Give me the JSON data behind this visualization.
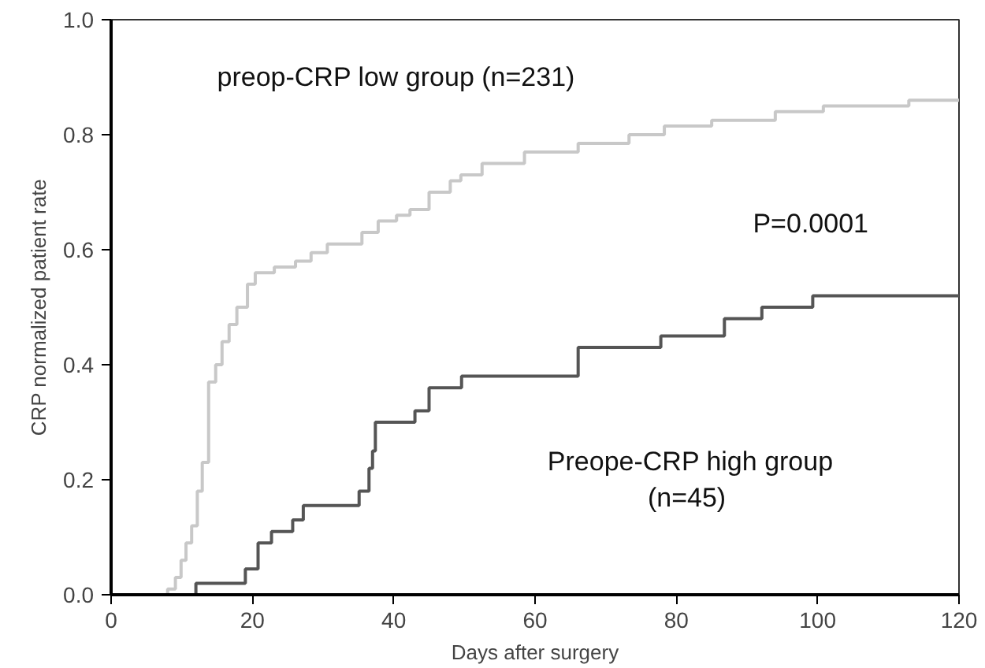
{
  "chart_data": {
    "type": "step",
    "xlabel": "Days after surgery",
    "ylabel": "CRP normalized patient rate",
    "xlim": [
      0,
      120
    ],
    "xticks": [
      0,
      20,
      40,
      60,
      80,
      100,
      120
    ],
    "ylim": [
      0,
      1
    ],
    "yticks": [
      {
        "value": 0,
        "label": "0.0"
      },
      {
        "value": 0.2,
        "label": "0.2"
      },
      {
        "value": 0.4,
        "label": "0.4"
      },
      {
        "value": 0.6,
        "label": "0.6"
      },
      {
        "value": 0.8,
        "label": "0.8"
      },
      {
        "value": 1,
        "label": "1.0"
      }
    ],
    "grid": false,
    "annotations": [
      "P=0.0001"
    ],
    "series": [
      {
        "name": "preop-CRP low group (n=231)",
        "color": "#c8c8c8",
        "x": [
          5.7,
          8.0,
          9.1,
          9.9,
          10.6,
          11.4,
          12.2,
          12.9,
          13.8,
          14.8,
          15.7,
          16.7,
          17.8,
          19.3,
          20.4,
          23.1,
          26.1,
          28.3,
          30.6,
          35.5,
          37.8,
          40.4,
          42.3,
          45,
          48,
          49.5,
          52.5,
          58.5,
          66.1,
          73.3,
          78.3,
          85,
          94,
          100.8,
          112.9,
          120
        ],
        "values": [
          0,
          0.01,
          0.03,
          0.06,
          0.09,
          0.12,
          0.18,
          0.23,
          0.37,
          0.4,
          0.44,
          0.47,
          0.5,
          0.54,
          0.56,
          0.57,
          0.58,
          0.595,
          0.61,
          0.63,
          0.65,
          0.66,
          0.67,
          0.7,
          0.72,
          0.73,
          0.75,
          0.77,
          0.785,
          0.8,
          0.815,
          0.825,
          0.84,
          0.85,
          0.86,
          0.86
        ]
      },
      {
        "name": "Preope-CRP high group\n (n=45)",
        "color": "#555555",
        "x": [
          0,
          12,
          19,
          20.8,
          22.7,
          25.7,
          27.2,
          35.1,
          36.5,
          37,
          37.4,
          43,
          45,
          49.6,
          66.1,
          77.8,
          86.8,
          92.1,
          99.3,
          120
        ],
        "values": [
          0,
          0.02,
          0.045,
          0.09,
          0.11,
          0.13,
          0.155,
          0.18,
          0.22,
          0.25,
          0.3,
          0.32,
          0.36,
          0.38,
          0.43,
          0.45,
          0.48,
          0.5,
          0.52,
          0.52
        ]
      }
    ]
  }
}
